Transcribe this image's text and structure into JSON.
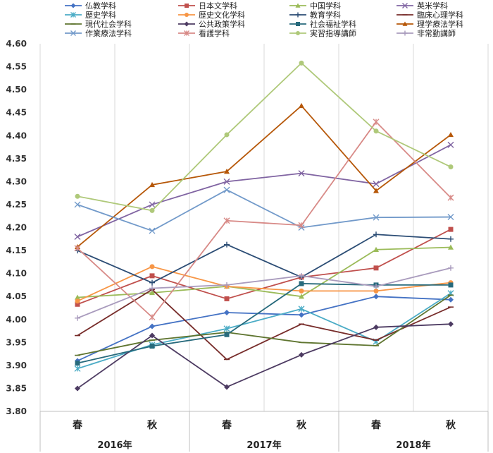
{
  "chart_data": {
    "type": "line",
    "x": [
      "春",
      "秋",
      "春",
      "秋",
      "春",
      "秋"
    ],
    "groups": [
      "2016年",
      "2017年",
      "2018年"
    ],
    "ylim": [
      3.8,
      4.6
    ],
    "yticks": [
      "3.80",
      "3.85",
      "3.90",
      "3.95",
      "4.00",
      "4.05",
      "4.10",
      "4.15",
      "4.20",
      "4.25",
      "4.30",
      "4.35",
      "4.40",
      "4.45",
      "4.50",
      "4.55",
      "4.60"
    ],
    "grid": "vertical",
    "legend_position": "top",
    "series": [
      {
        "name": "仏教学科",
        "color": "#4472c4",
        "marker": "diamond",
        "values": [
          3.91,
          3.985,
          4.015,
          4.01,
          4.05,
          4.043
        ]
      },
      {
        "name": "日本文学科",
        "color": "#c0504d",
        "marker": "square",
        "values": [
          4.033,
          4.095,
          4.045,
          4.092,
          4.112,
          4.196
        ]
      },
      {
        "name": "中国学科",
        "color": "#9bbb59",
        "marker": "triangle",
        "values": [
          4.048,
          4.058,
          4.072,
          4.05,
          4.152,
          4.157
        ]
      },
      {
        "name": "英米学科",
        "color": "#8064a2",
        "marker": "x",
        "values": [
          4.18,
          4.25,
          4.3,
          4.318,
          4.295,
          4.38
        ]
      },
      {
        "name": "歴史学科",
        "color": "#4bacc6",
        "marker": "star",
        "values": [
          3.893,
          3.945,
          3.98,
          4.023,
          3.952,
          4.057
        ]
      },
      {
        "name": "歴史文化学科",
        "color": "#f79646",
        "marker": "circle",
        "values": [
          4.04,
          4.115,
          4.072,
          4.062,
          4.062,
          4.08
        ]
      },
      {
        "name": "教育学科",
        "color": "#2c4d75",
        "marker": "plus",
        "values": [
          4.15,
          4.08,
          4.163,
          4.092,
          4.185,
          4.175
        ]
      },
      {
        "name": "臨床心理学科",
        "color": "#772c2a",
        "marker": "dash",
        "values": [
          3.965,
          4.065,
          3.913,
          3.99,
          3.955,
          4.027
        ]
      },
      {
        "name": "現代社会学科",
        "color": "#5f7530",
        "marker": "dash",
        "values": [
          3.922,
          3.955,
          3.972,
          3.95,
          3.943,
          4.053
        ]
      },
      {
        "name": "公共政策学科",
        "color": "#4d3b62",
        "marker": "diamond",
        "values": [
          3.85,
          3.965,
          3.853,
          3.923,
          3.983,
          3.99
        ]
      },
      {
        "name": "社会福祉学科",
        "color": "#276a7c",
        "marker": "square",
        "values": [
          3.905,
          3.942,
          3.967,
          4.078,
          4.075,
          4.075
        ]
      },
      {
        "name": "理学療法学科",
        "color": "#b65708",
        "marker": "triangle",
        "values": [
          4.158,
          4.293,
          4.322,
          4.465,
          4.28,
          4.402
        ]
      },
      {
        "name": "作業療法学科",
        "color": "#729aca",
        "marker": "x",
        "values": [
          4.25,
          4.193,
          4.282,
          4.2,
          4.222,
          4.223
        ]
      },
      {
        "name": "看護学科",
        "color": "#d88a87",
        "marker": "star",
        "values": [
          4.155,
          4.005,
          4.215,
          4.205,
          4.43,
          4.265
        ]
      },
      {
        "name": "実習指導講師",
        "color": "#afc97a",
        "marker": "circle",
        "values": [
          4.268,
          4.237,
          4.402,
          4.558,
          4.41,
          4.332
        ]
      },
      {
        "name": "非常勤講師",
        "color": "#a99bbd",
        "marker": "plus",
        "values": [
          4.003,
          4.068,
          4.075,
          4.095,
          4.072,
          4.112
        ]
      }
    ]
  }
}
